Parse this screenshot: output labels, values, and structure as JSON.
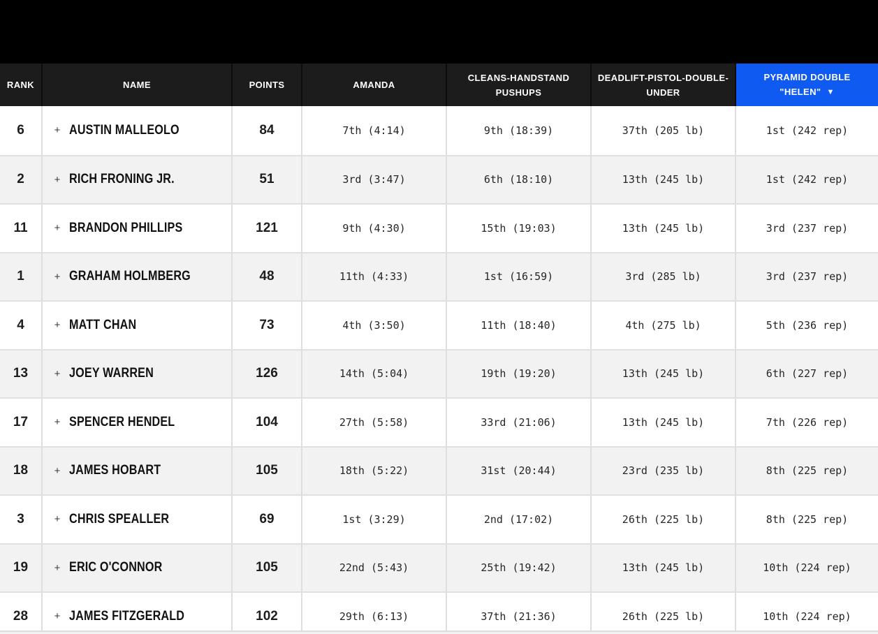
{
  "colors": {
    "top_bar": "#000000",
    "header_bg": "#1c1c1c",
    "header_divider": "#0c0c0c",
    "header_text": "#ffffff",
    "accent_blue": "#0f5bf2",
    "row_white": "#ffffff",
    "row_alt": "#f2f2f2",
    "row_divider": "#e0e0e0",
    "text_dark": "#1d1d1d"
  },
  "table": {
    "columns": [
      {
        "key": "rank",
        "label": "RANK"
      },
      {
        "key": "name",
        "label": "NAME"
      },
      {
        "key": "points",
        "label": "POINTS"
      },
      {
        "key": "amanda",
        "label": "AMANDA"
      },
      {
        "key": "cleans",
        "label": "CLEANS-HANDSTAND PUSHUPS"
      },
      {
        "key": "deadlift",
        "label": "DEADLIFT-PISTOL-DOUBLE-UNDER"
      },
      {
        "key": "helen",
        "label": "PYRAMID DOUBLE \"HELEN\""
      }
    ],
    "sort": {
      "column": "helen",
      "direction": "desc",
      "icon": "▼"
    },
    "expand_icon": "+",
    "rows": [
      {
        "rank": "6",
        "name": "AUSTIN MALLEOLO",
        "points": "84",
        "amanda": "7th (4:14)",
        "cleans": "9th (18:39)",
        "deadlift": "37th (205 lb)",
        "helen": "1st (242 rep)"
      },
      {
        "rank": "2",
        "name": "RICH FRONING JR.",
        "points": "51",
        "amanda": "3rd (3:47)",
        "cleans": "6th (18:10)",
        "deadlift": "13th (245 lb)",
        "helen": "1st (242 rep)"
      },
      {
        "rank": "11",
        "name": "BRANDON PHILLIPS",
        "points": "121",
        "amanda": "9th (4:30)",
        "cleans": "15th (19:03)",
        "deadlift": "13th (245 lb)",
        "helen": "3rd (237 rep)"
      },
      {
        "rank": "1",
        "name": "GRAHAM HOLMBERG",
        "points": "48",
        "amanda": "11th (4:33)",
        "cleans": "1st (16:59)",
        "deadlift": "3rd (285 lb)",
        "helen": "3rd (237 rep)"
      },
      {
        "rank": "4",
        "name": "MATT CHAN",
        "points": "73",
        "amanda": "4th (3:50)",
        "cleans": "11th (18:40)",
        "deadlift": "4th (275 lb)",
        "helen": "5th (236 rep)"
      },
      {
        "rank": "13",
        "name": "JOEY WARREN",
        "points": "126",
        "amanda": "14th (5:04)",
        "cleans": "19th (19:20)",
        "deadlift": "13th (245 lb)",
        "helen": "6th (227 rep)"
      },
      {
        "rank": "17",
        "name": "SPENCER HENDEL",
        "points": "104",
        "amanda": "27th (5:58)",
        "cleans": "33rd (21:06)",
        "deadlift": "13th (245 lb)",
        "helen": "7th (226 rep)"
      },
      {
        "rank": "18",
        "name": "JAMES HOBART",
        "points": "105",
        "amanda": "18th (5:22)",
        "cleans": "31st (20:44)",
        "deadlift": "23rd (235 lb)",
        "helen": "8th (225 rep)"
      },
      {
        "rank": "3",
        "name": "CHRIS SPEALLER",
        "points": "69",
        "amanda": "1st (3:29)",
        "cleans": "2nd (17:02)",
        "deadlift": "26th (225 lb)",
        "helen": "8th (225 rep)"
      },
      {
        "rank": "19",
        "name": "ERIC O'CONNOR",
        "points": "105",
        "amanda": "22nd (5:43)",
        "cleans": "25th (19:42)",
        "deadlift": "13th (245 lb)",
        "helen": "10th (224 rep)"
      },
      {
        "rank": "28",
        "name": "JAMES FITZGERALD",
        "points": "102",
        "amanda": "29th (6:13)",
        "cleans": "37th (21:36)",
        "deadlift": "26th (225 lb)",
        "helen": "10th (224 rep)"
      }
    ]
  }
}
